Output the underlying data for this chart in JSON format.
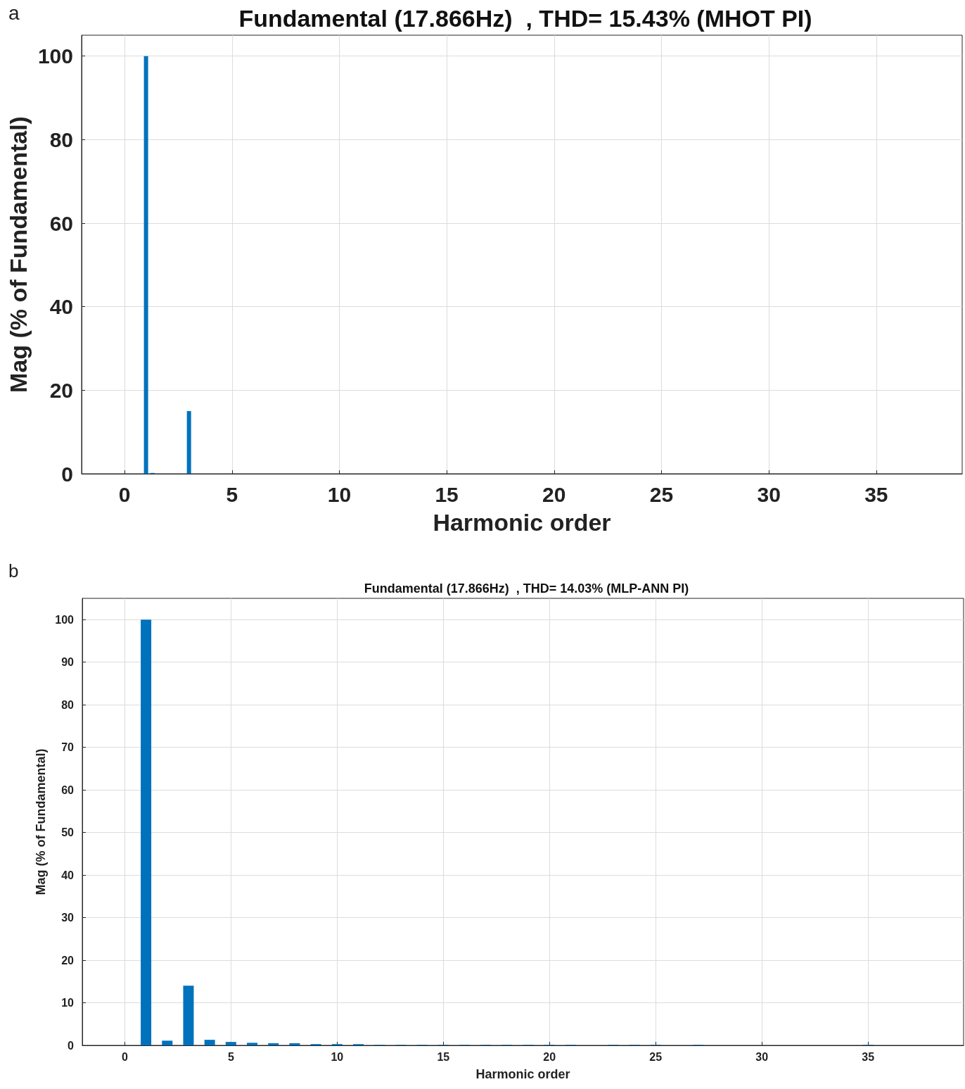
{
  "chart_data": [
    {
      "type": "bar",
      "title": "Fundamental (17.866Hz)  , THD= 15.43% (MHOT PI)",
      "xlabel": "Harmonic order",
      "ylabel": "Mag (% of Fundamental)",
      "annotations": [
        "a"
      ],
      "x": [
        1,
        1.3,
        3
      ],
      "values": [
        100,
        0.2,
        15
      ],
      "color": "#0072bd",
      "xlim": [
        -2,
        39
      ],
      "xticks": [
        0,
        5,
        10,
        15,
        20,
        25,
        30,
        35
      ],
      "ylim": [
        0,
        105
      ],
      "yticks": [
        0,
        20,
        40,
        60,
        80,
        100
      ],
      "grid": true
    },
    {
      "type": "bar",
      "title": "Fundamental (17.866Hz)  , THD= 14.03% (MLP-ANN PI)",
      "xlabel": "Harmonic order",
      "ylabel": "Mag (% of Fundamental)",
      "annotations": [
        "b"
      ],
      "x": [
        1,
        2,
        3,
        4,
        5,
        6,
        7,
        8,
        9,
        10,
        11,
        12,
        13,
        14,
        15,
        16,
        17,
        18,
        19,
        20,
        21,
        23,
        24,
        25,
        27,
        35
      ],
      "values": [
        100,
        1.1,
        14,
        1.3,
        0.8,
        0.6,
        0.5,
        0.5,
        0.3,
        0.3,
        0.3,
        0.1,
        0.1,
        0.1,
        0.1,
        0.1,
        0.1,
        0.1,
        0.1,
        0.1,
        0.1,
        0.1,
        0.1,
        0.1,
        0.1,
        0.1
      ],
      "color": "#0072bd",
      "xlim": [
        -2,
        39.5
      ],
      "xticks": [
        0,
        5,
        10,
        15,
        20,
        25,
        30,
        35
      ],
      "ylim": [
        0,
        105
      ],
      "yticks": [
        0,
        10,
        20,
        30,
        40,
        50,
        60,
        70,
        80,
        90,
        100
      ],
      "grid": true
    }
  ]
}
